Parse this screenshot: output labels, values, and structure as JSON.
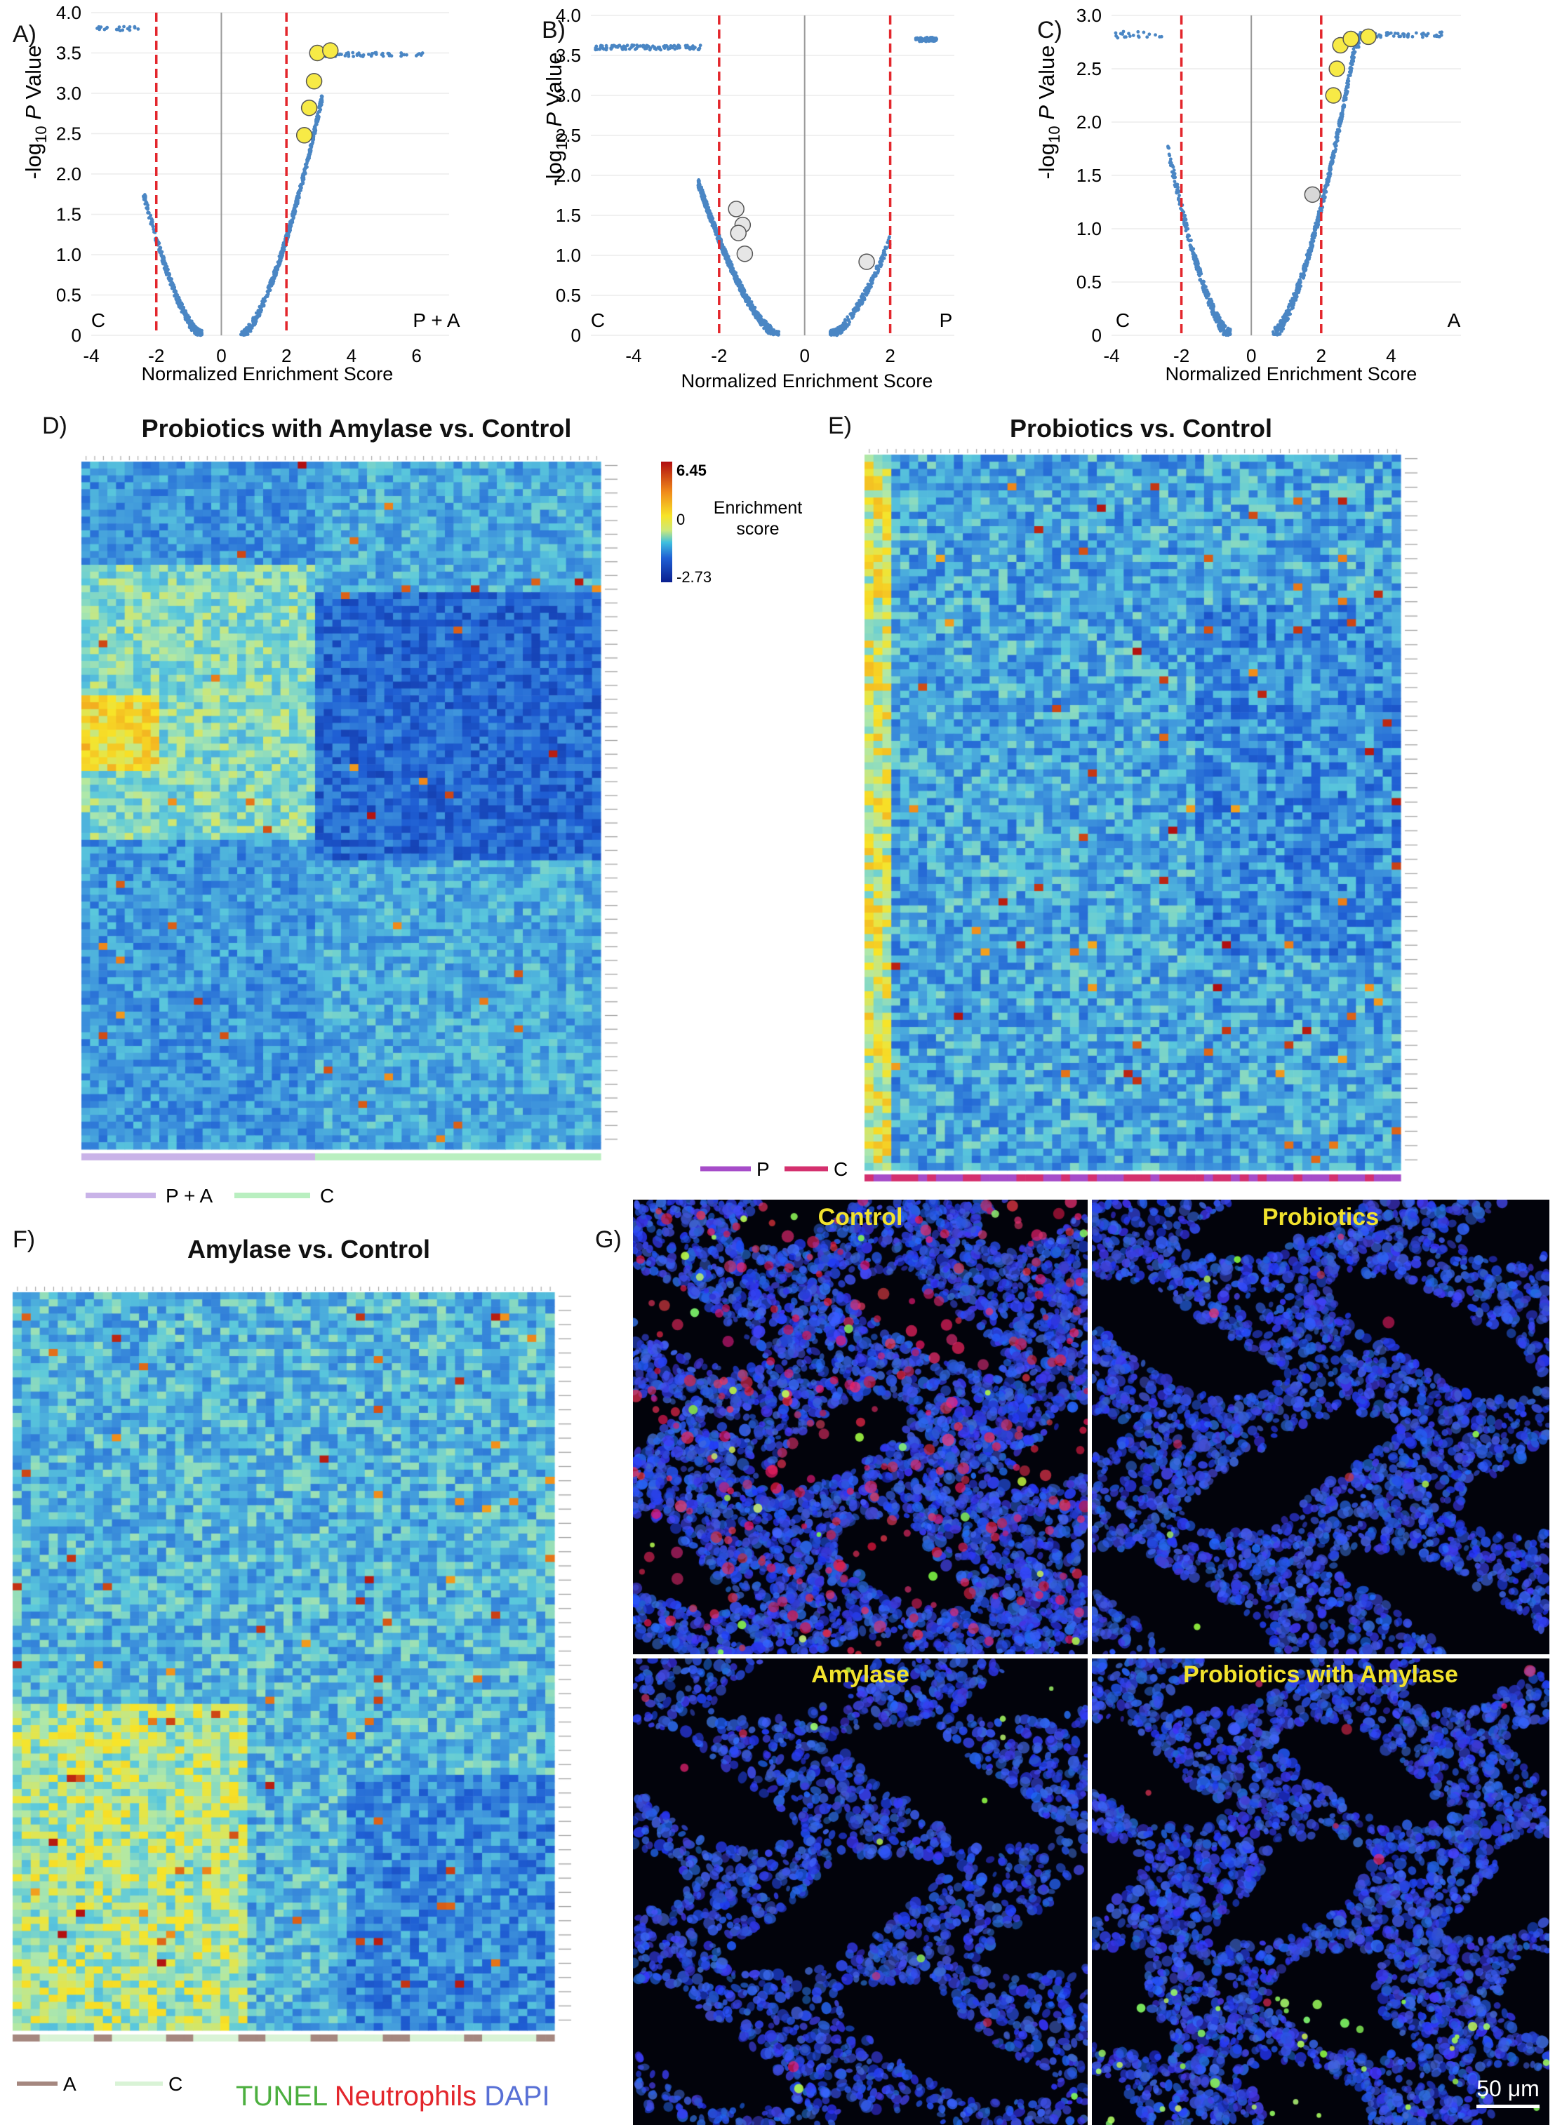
{
  "panels": {
    "A": "A)",
    "B": "B)",
    "C": "C)",
    "D": "D)",
    "E": "E)",
    "F": "F)",
    "G": "G)"
  },
  "chart_data": [
    {
      "id": "A",
      "type": "scatter",
      "title": "",
      "xlabel": "Normalized Enrichment Score",
      "ylabel": "-log10 P Value",
      "xlim": [
        -4,
        7
      ],
      "ylim": [
        0,
        4
      ],
      "xticks": [
        -4,
        -2,
        0,
        2,
        4,
        6
      ],
      "yticks": [
        "0",
        "0.5",
        "1.0",
        "1.5",
        "2.0",
        "2.5",
        "3.0",
        "3.5",
        "4.0"
      ],
      "thresholds": [
        -2,
        2
      ],
      "left_group": "C",
      "right_group": "P + A",
      "highlighted": [
        {
          "x": 2.55,
          "y": 2.48
        },
        {
          "x": 2.7,
          "y": 2.82
        },
        {
          "x": 2.85,
          "y": 3.15
        },
        {
          "x": 2.95,
          "y": 3.5
        },
        {
          "x": 3.35,
          "y": 3.53
        }
      ],
      "colors": {
        "points": "#4a86c4",
        "threshold": "#e3262c",
        "highlight": "#f7ea46"
      }
    },
    {
      "id": "B",
      "type": "scatter",
      "title": "",
      "xlabel": "Normalized Enrichment Score",
      "ylabel": "-log10 P Value",
      "xlim": [
        -5,
        3.5
      ],
      "ylim": [
        0,
        4
      ],
      "xticks": [
        -4,
        -2,
        0,
        2
      ],
      "yticks": [
        "0",
        "0.5",
        "1.0",
        "1.5",
        "2.0",
        "2.5",
        "3.0",
        "3.5",
        "4.0"
      ],
      "thresholds": [
        -2,
        2
      ],
      "left_group": "C",
      "right_group": "P",
      "highlighted": [
        {
          "x": -1.6,
          "y": 1.58
        },
        {
          "x": -1.45,
          "y": 1.38
        },
        {
          "x": -1.55,
          "y": 1.28
        },
        {
          "x": -1.4,
          "y": 1.02
        },
        {
          "x": 1.45,
          "y": 0.92
        }
      ],
      "colors": {
        "points": "#4a86c4",
        "threshold": "#e3262c",
        "highlight": "#e6e6e6"
      }
    },
    {
      "id": "C",
      "type": "scatter",
      "title": "",
      "xlabel": "Normalized Enrichment Score",
      "ylabel": "-log10 P Value",
      "xlim": [
        -4,
        6
      ],
      "ylim": [
        0,
        3
      ],
      "xticks": [
        -4,
        -2,
        0,
        2,
        4
      ],
      "yticks": [
        "0",
        "0.5",
        "1.0",
        "1.5",
        "2.0",
        "2.5",
        "3.0"
      ],
      "thresholds": [
        -2,
        2
      ],
      "left_group": "C",
      "right_group": "A",
      "highlighted": [
        {
          "x": 2.35,
          "y": 2.25
        },
        {
          "x": 2.45,
          "y": 2.5
        },
        {
          "x": 2.55,
          "y": 2.72
        },
        {
          "x": 2.85,
          "y": 2.78
        },
        {
          "x": 3.35,
          "y": 2.8
        }
      ],
      "grey_point": {
        "x": 1.75,
        "y": 1.32
      },
      "colors": {
        "points": "#4a86c4",
        "threshold": "#e3262c",
        "highlight": "#f7ea46",
        "grey": "#d8d8d8"
      }
    },
    {
      "id": "D",
      "type": "heatmap",
      "title": "Probiotics with Amylase vs. Control",
      "legend": {
        "label_top": "Enrichment",
        "label_bottom": "score",
        "max": "6.45",
        "mid": "0",
        "min": "-2.73"
      },
      "groups": [
        {
          "name": "P + A",
          "color": "#c9b3e8"
        },
        {
          "name": "C",
          "color": "#b9efc0"
        }
      ]
    },
    {
      "id": "E",
      "type": "heatmap",
      "title": "Probiotics vs. Control",
      "groups": [
        {
          "name": "P",
          "color": "#a64cc9"
        },
        {
          "name": "C",
          "color": "#d4306e"
        }
      ]
    },
    {
      "id": "F",
      "type": "heatmap",
      "title": "Amylase vs. Control",
      "groups": [
        {
          "name": "A",
          "color": "#a5877f"
        },
        {
          "name": "C",
          "color": "#d9f3d6"
        }
      ]
    }
  ],
  "micrographs": {
    "panels": [
      {
        "label": "Control"
      },
      {
        "label": "Probiotics"
      },
      {
        "label": "Amylase"
      },
      {
        "label": "Probiotics with Amylase"
      }
    ],
    "stain_legend": [
      {
        "text": "TUNEL",
        "color": "#4caf3f"
      },
      {
        "text": "Neutrophils",
        "color": "#e3262c"
      },
      {
        "text": "DAPI",
        "color": "#5870d6"
      }
    ],
    "scale_bar": "50 μm"
  }
}
